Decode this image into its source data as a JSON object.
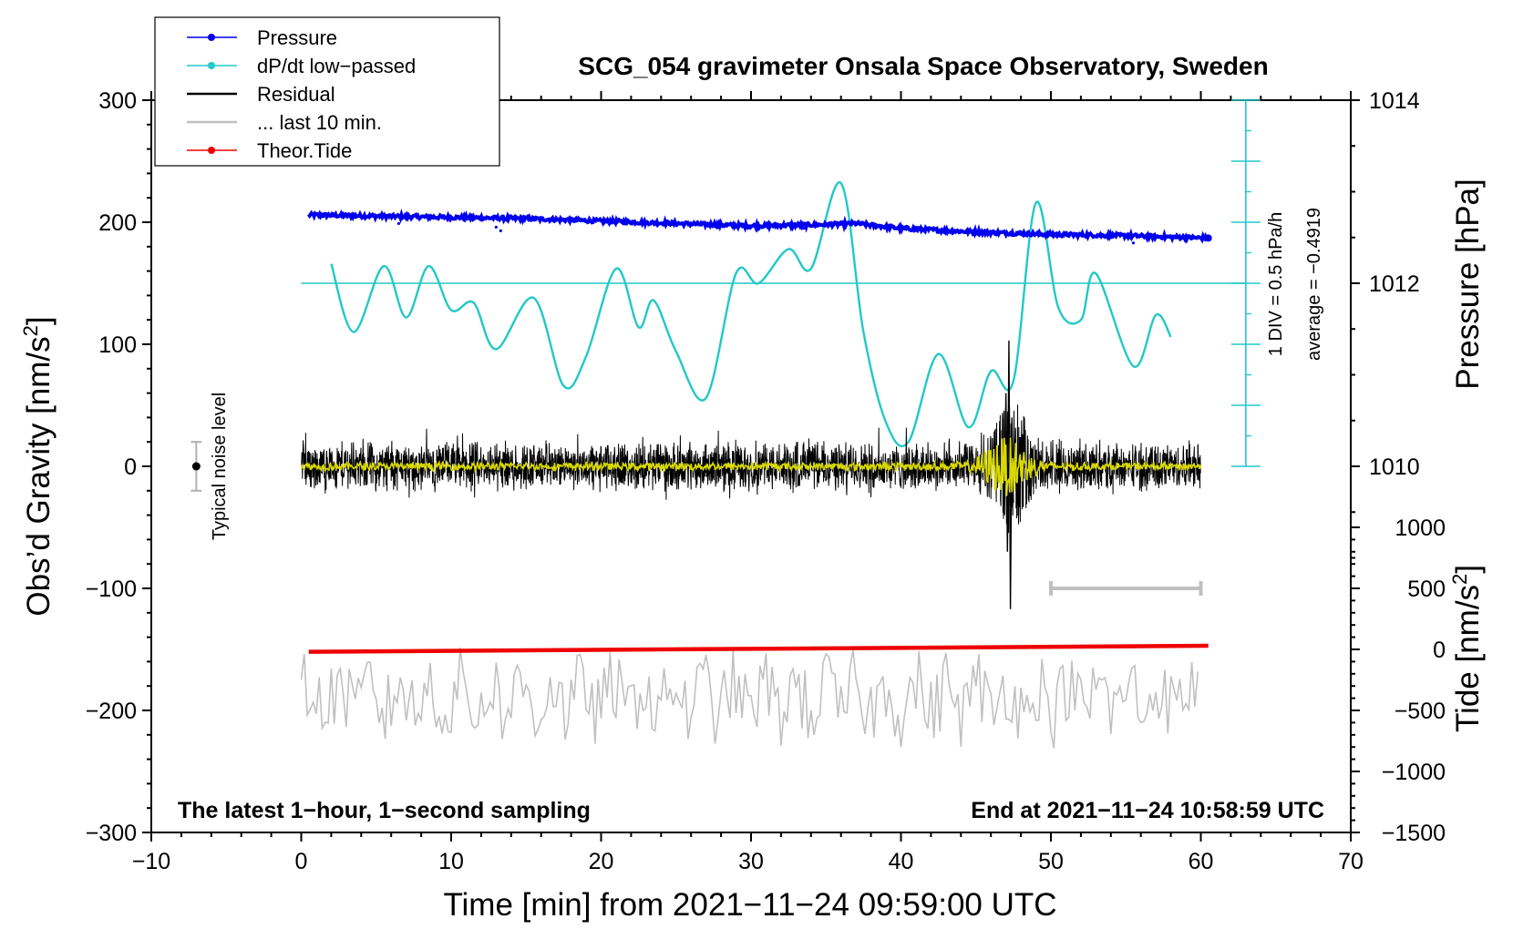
{
  "chart_data": {
    "type": "line",
    "title": "SCG_054 gravimeter Onsala Space Observatory, Sweden",
    "xlabel": "Time [min] from 2021−11−24 09:59:00 UTC",
    "ylabel_left": "Obs’d Gravity [nm/s",
    "ylabel_left_sup": "2",
    "ylabel_left_end": "]",
    "ylabel_right_top": "Pressure [hPa]",
    "ylabel_right_bottom": "Tide [nm/s",
    "ylabel_right_bottom_sup": "2",
    "ylabel_right_bottom_end": "]",
    "xlim": [
      -10,
      70
    ],
    "ylim": [
      -300,
      300
    ],
    "x_ticks": [
      -10,
      0,
      10,
      20,
      30,
      40,
      50,
      60,
      70
    ],
    "x_tick_labels": [
      "−10",
      "0",
      "10",
      "20",
      "30",
      "40",
      "50",
      "60",
      "70"
    ],
    "y_ticks": [
      -300,
      -200,
      -100,
      0,
      100,
      200,
      300
    ],
    "y_tick_labels": [
      "−300",
      "−200",
      "−100",
      "0",
      "100",
      "200",
      "300"
    ],
    "pressure_axis": {
      "ticks": [
        1010,
        1012,
        1014
      ],
      "tick_labels": [
        "1010",
        "1012",
        "1014"
      ],
      "ref_gravity": 150,
      "ref_hpa": 1012,
      "gravity_per_hpa": 75
    },
    "tide_axis": {
      "ticks": [
        -1500,
        -1000,
        -500,
        0,
        500,
        1000
      ],
      "tick_labels": [
        "−1500",
        "−1000",
        "−500",
        "0",
        "500",
        "1000"
      ],
      "gravity_at_zero": -150,
      "gravity_per_unit": 0.1
    },
    "legend": [
      {
        "label": "Pressure",
        "color": "#0000ee",
        "marker": true
      },
      {
        "label": "dP/dt low−passed",
        "color": "#22c8c8",
        "marker": true
      },
      {
        "label": "Residual",
        "color": "#000000",
        "marker": false
      },
      {
        "label": "... last 10 min.",
        "color": "#c0c0c0",
        "marker": false
      },
      {
        "label": "Theor.Tide",
        "color": "#ee0000",
        "marker": true
      }
    ],
    "series": [
      {
        "name": "Pressure",
        "color": "#0000ee",
        "units": "gravity-scaled",
        "x": [
          0.5,
          5,
          10,
          15,
          20,
          25,
          30,
          35,
          37,
          40,
          45,
          50,
          55,
          60.5
        ],
        "values": [
          206,
          205,
          204,
          203,
          201,
          199,
          197,
          198,
          199,
          195,
          192,
          190,
          189,
          187
        ]
      },
      {
        "name": "dP/dt low-passed",
        "color": "#22c8c8",
        "units": "gravity-scaled",
        "x": [
          2,
          3.5,
          5.5,
          7,
          8.5,
          10,
          11.5,
          13,
          15.5,
          17.5,
          19,
          21,
          22.5,
          23.5,
          25,
          27,
          29,
          30.5,
          32.5,
          34,
          36,
          37.5,
          39,
          40.5,
          42.5,
          44.5,
          46,
          47.5,
          49,
          50.5,
          52,
          53,
          55.5,
          57,
          58
        ],
        "values": [
          166,
          110,
          164,
          122,
          164,
          128,
          134,
          96,
          138,
          66,
          90,
          162,
          114,
          136,
          94,
          56,
          158,
          150,
          178,
          162,
          232,
          110,
          36,
          20,
          92,
          32,
          78,
          70,
          216,
          130,
          120,
          158,
          82,
          124,
          106
        ]
      },
      {
        "name": "Reference level",
        "color": "#22c8c8",
        "x": [
          0,
          63
        ],
        "values": [
          150,
          150
        ]
      },
      {
        "name": "Residual",
        "color": "#000000",
        "units": "nm/s^2",
        "envelope_amplitude": 30,
        "event_min": 47.3,
        "event_max": 103,
        "event_min_value": -117
      },
      {
        "name": "Residual smoothed",
        "color": "#d8d800",
        "envelope_amplitude": 4
      },
      {
        "name": "... last 10 min.",
        "color": "#c0c0c0",
        "units": "nm/s^2",
        "x_range": [
          0,
          60
        ],
        "center": -190,
        "amplitude": 30
      },
      {
        "name": "Theor.Tide",
        "color": "#ee0000",
        "units": "nm/s^2",
        "x": [
          0.5,
          60.5
        ],
        "values": [
          -152,
          -147
        ]
      }
    ],
    "div_scale": {
      "ticks_from": 0,
      "ticks_to": 300,
      "tick_step": 25,
      "x": 63,
      "label_line1": "1 DIV = 0.5 hPa/h",
      "label_line2": "average = −0.4919"
    },
    "noise_level": {
      "x": -7,
      "value": 0,
      "half_range": 20,
      "label": "Typical noise level"
    },
    "window_bar": {
      "x_start": 50,
      "x_end": 60,
      "value": -100
    },
    "annotations": {
      "bottom_left": "The latest 1−hour, 1−second sampling",
      "bottom_right": "End at 2021−11−24 10:58:59 UTC"
    }
  }
}
